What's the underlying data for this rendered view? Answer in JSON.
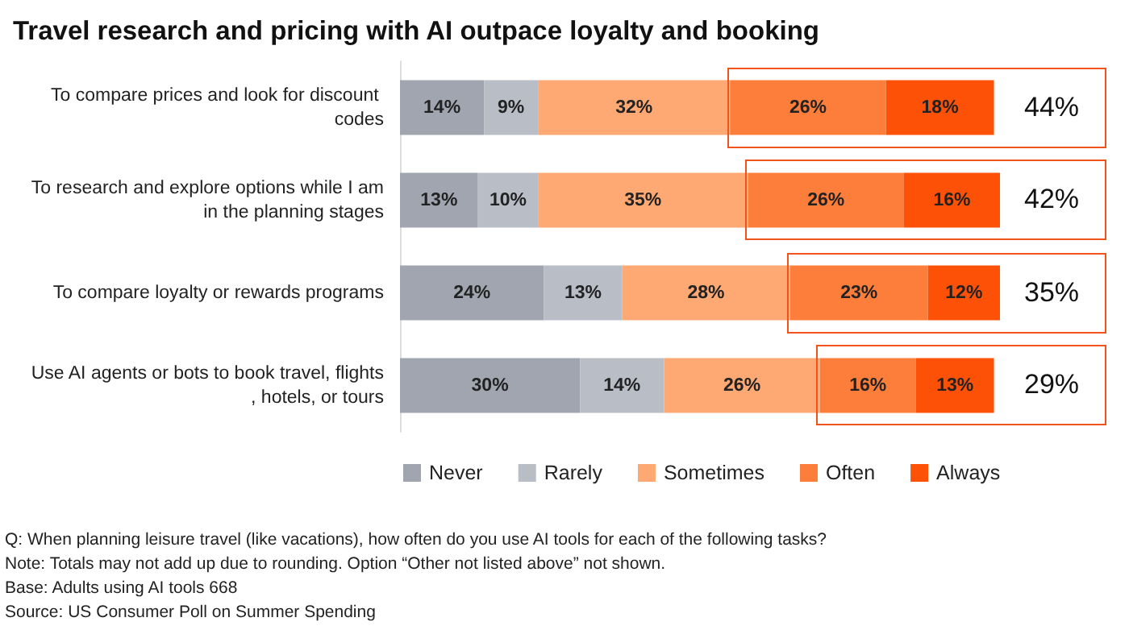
{
  "chart_data": {
    "type": "bar",
    "orientation": "horizontal",
    "stacked": true,
    "grid": false,
    "legend": "bottom",
    "title": "Travel research and pricing with AI outpace loyalty and booking",
    "categories": [
      "To compare prices and look for discount codes",
      "To research and explore options while I am in the planning stages",
      "To compare loyalty or rewards programs",
      "Use AI agents or bots to book travel, flights, hotels, or tours"
    ],
    "series": [
      {
        "name": "Never",
        "color": "#a0a5af",
        "values": [
          14,
          13,
          24,
          30
        ],
        "value_labels": [
          "14%",
          "13%",
          "24%",
          "30%"
        ]
      },
      {
        "name": "Rarely",
        "color": "#b9bec6",
        "values": [
          9,
          10,
          13,
          14
        ],
        "value_labels": [
          "9%",
          "10%",
          "13%",
          "14%"
        ]
      },
      {
        "name": "Sometimes",
        "color": "#fea873",
        "values": [
          32,
          35,
          28,
          26
        ],
        "value_labels": [
          "32%",
          "35%",
          "28%",
          "26%"
        ]
      },
      {
        "name": "Often",
        "color": "#fd7e3b",
        "values": [
          26,
          26,
          23,
          16
        ],
        "value_labels": [
          "26%",
          "26%",
          "23%",
          "16%"
        ]
      },
      {
        "name": "Always",
        "color": "#fd5108",
        "values": [
          18,
          16,
          12,
          13
        ],
        "value_labels": [
          "18%",
          "16%",
          "12%",
          "13%"
        ]
      }
    ],
    "annotations": [
      "44%",
      "42%",
      "35%",
      "29%",
      "Q: When planning leisure travel (like vacations), how often do you use AI tools for each of the following tasks?",
      "Note: Totals may not add up due to rounding. Option “Other not listed above” not shown.",
      "Base: Adults using AI tools 668",
      "Source: US Consumer Poll on Summer Spending"
    ]
  }
}
